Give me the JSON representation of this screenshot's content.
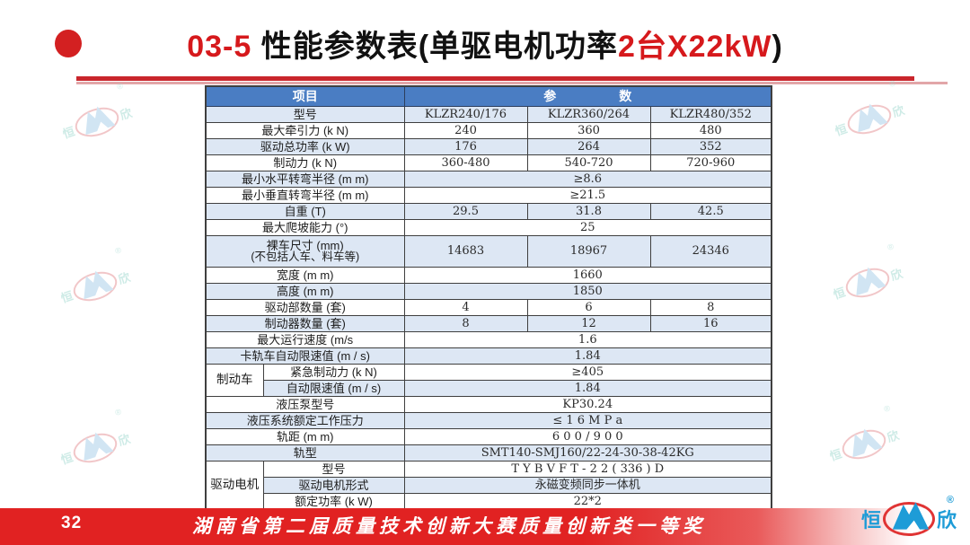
{
  "title": {
    "number": "03-5",
    "main": " 性能参数表(单驱电机功率",
    "highlight": "2台X22kW",
    "closing": ")"
  },
  "table": {
    "header_item": "项目",
    "header_params": "参　　　　　数",
    "rows": [
      {
        "label": "型号",
        "values": [
          "KLZR240/176",
          "KLZR360/264",
          "KLZR480/352"
        ]
      },
      {
        "label": "最大牵引力 (k N)",
        "values": [
          "240",
          "360",
          "480"
        ]
      },
      {
        "label": "驱动总功率 (k W)",
        "values": [
          "176",
          "264",
          "352"
        ]
      },
      {
        "label": "制动力 (k N)",
        "values": [
          "360-480",
          "540-720",
          "720-960"
        ]
      },
      {
        "label": "最小水平转弯半径 (m m)",
        "span": "≥8.6"
      },
      {
        "label": "最小垂直转弯半径 (m m)",
        "span": "≥21.5"
      },
      {
        "label": "自重 (T)",
        "values": [
          "29.5",
          "31.8",
          "42.5"
        ]
      },
      {
        "label": "最大爬坡能力 (°)",
        "span": "25"
      },
      {
        "label": "裸车尺寸 (mm)",
        "label2": "(不包括人车、料车等)",
        "values": [
          "14683",
          "18967",
          "24346"
        ],
        "tall": true
      },
      {
        "label": "宽度 (m m)",
        "span": "1660"
      },
      {
        "label": "高度 (m m)",
        "span": "1850"
      },
      {
        "label": "驱动部数量 (套)",
        "values": [
          "4",
          "6",
          "8"
        ]
      },
      {
        "label": "制动器数量 (套)",
        "values": [
          "8",
          "12",
          "16"
        ]
      },
      {
        "label": "最大运行速度 (m/s",
        "span": "1.6"
      },
      {
        "label": "卡轨车自动限速值 (m / s)",
        "span": "1.84"
      },
      {
        "group": "制动车",
        "group_rows": 2,
        "label": "紧急制动力 (k N)",
        "span": "≥405"
      },
      {
        "label": "自动限速值 (m / s)",
        "span": "1.84"
      },
      {
        "label": "液压泵型号",
        "span": "KP30.24"
      },
      {
        "label": "液压系统额定工作压力",
        "span": "≤ 1 6 M P a"
      },
      {
        "label": "轨距 (m m)",
        "span": "6 0 0 / 9 0 0"
      },
      {
        "label": "轨型",
        "span": "SMT140-SMJ160/22-24-30-38-42KG"
      },
      {
        "group": "驱动电机",
        "group_rows": 3,
        "label": "型号",
        "span": "T Y B V F T - 2 2 ( 336 ) D"
      },
      {
        "label": "驱动电机形式",
        "span": "永磁变频同步一体机"
      },
      {
        "label": "额定功率 (k W)",
        "span": "22*2"
      }
    ]
  },
  "footer": {
    "page_number": "32",
    "award_text": "湖南省第二届质量技术创新大赛质量创新类一等奖"
  },
  "logo": {
    "left_char": "恒",
    "right_char": "欣",
    "registered": "®"
  },
  "colors": {
    "accent_red": "#d6191c",
    "header_blue": "#4a7dc3",
    "row_tint": "#dde7f4",
    "footer_red": "#e12222",
    "logo_blue": "#1e9cd7",
    "logo_ellipse_red": "#e03434"
  }
}
